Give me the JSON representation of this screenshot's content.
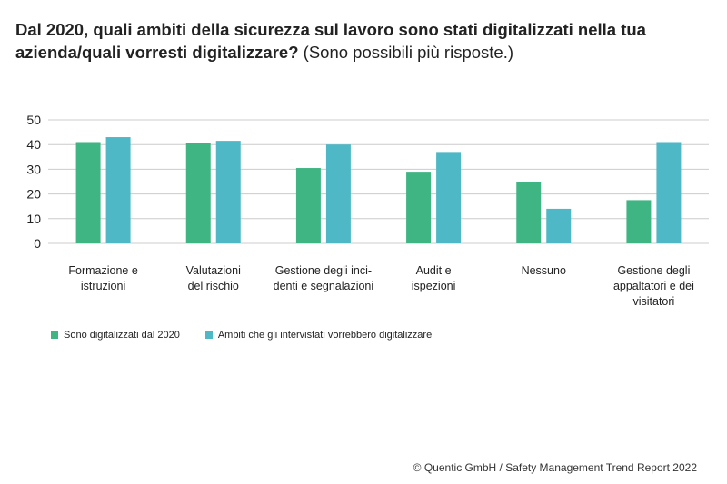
{
  "title": {
    "bold": "Dal 2020, quali ambiti della sicurezza sul lavoro sono stati digitalizzati nella tua azienda/quali vorresti digitalizzare?",
    "light": "(Sono possibili più risposte.)"
  },
  "source": "© Quentic GmbH / Safety Management Trend Report 2022",
  "colors": {
    "series1": "#3fb584",
    "series2": "#4fb8c6",
    "grid": "#cccccc"
  },
  "chart_data": {
    "type": "bar",
    "categories": [
      [
        "Formazione e",
        "istruzioni"
      ],
      [
        "Valutazioni",
        "del rischio"
      ],
      [
        "Gestione degli inci-",
        "denti e segnalazioni"
      ],
      [
        "Audit e",
        "ispezioni"
      ],
      [
        "Nessuno"
      ],
      [
        "Gestione degli",
        "appaltatori e dei",
        "visitatori"
      ]
    ],
    "series": [
      {
        "name": "Sono digitalizzati dal 2020",
        "values": [
          41,
          40.5,
          30.5,
          29,
          25,
          17.5
        ]
      },
      {
        "name": "Ambiti che gli intervistati vorrebbero digitalizzare",
        "values": [
          43,
          41.5,
          40,
          37,
          14,
          41
        ]
      }
    ],
    "yticks": [
      0,
      10,
      20,
      30,
      40,
      50
    ],
    "ylim": [
      0,
      50
    ],
    "grid": true,
    "legend_position": "bottom-left"
  }
}
